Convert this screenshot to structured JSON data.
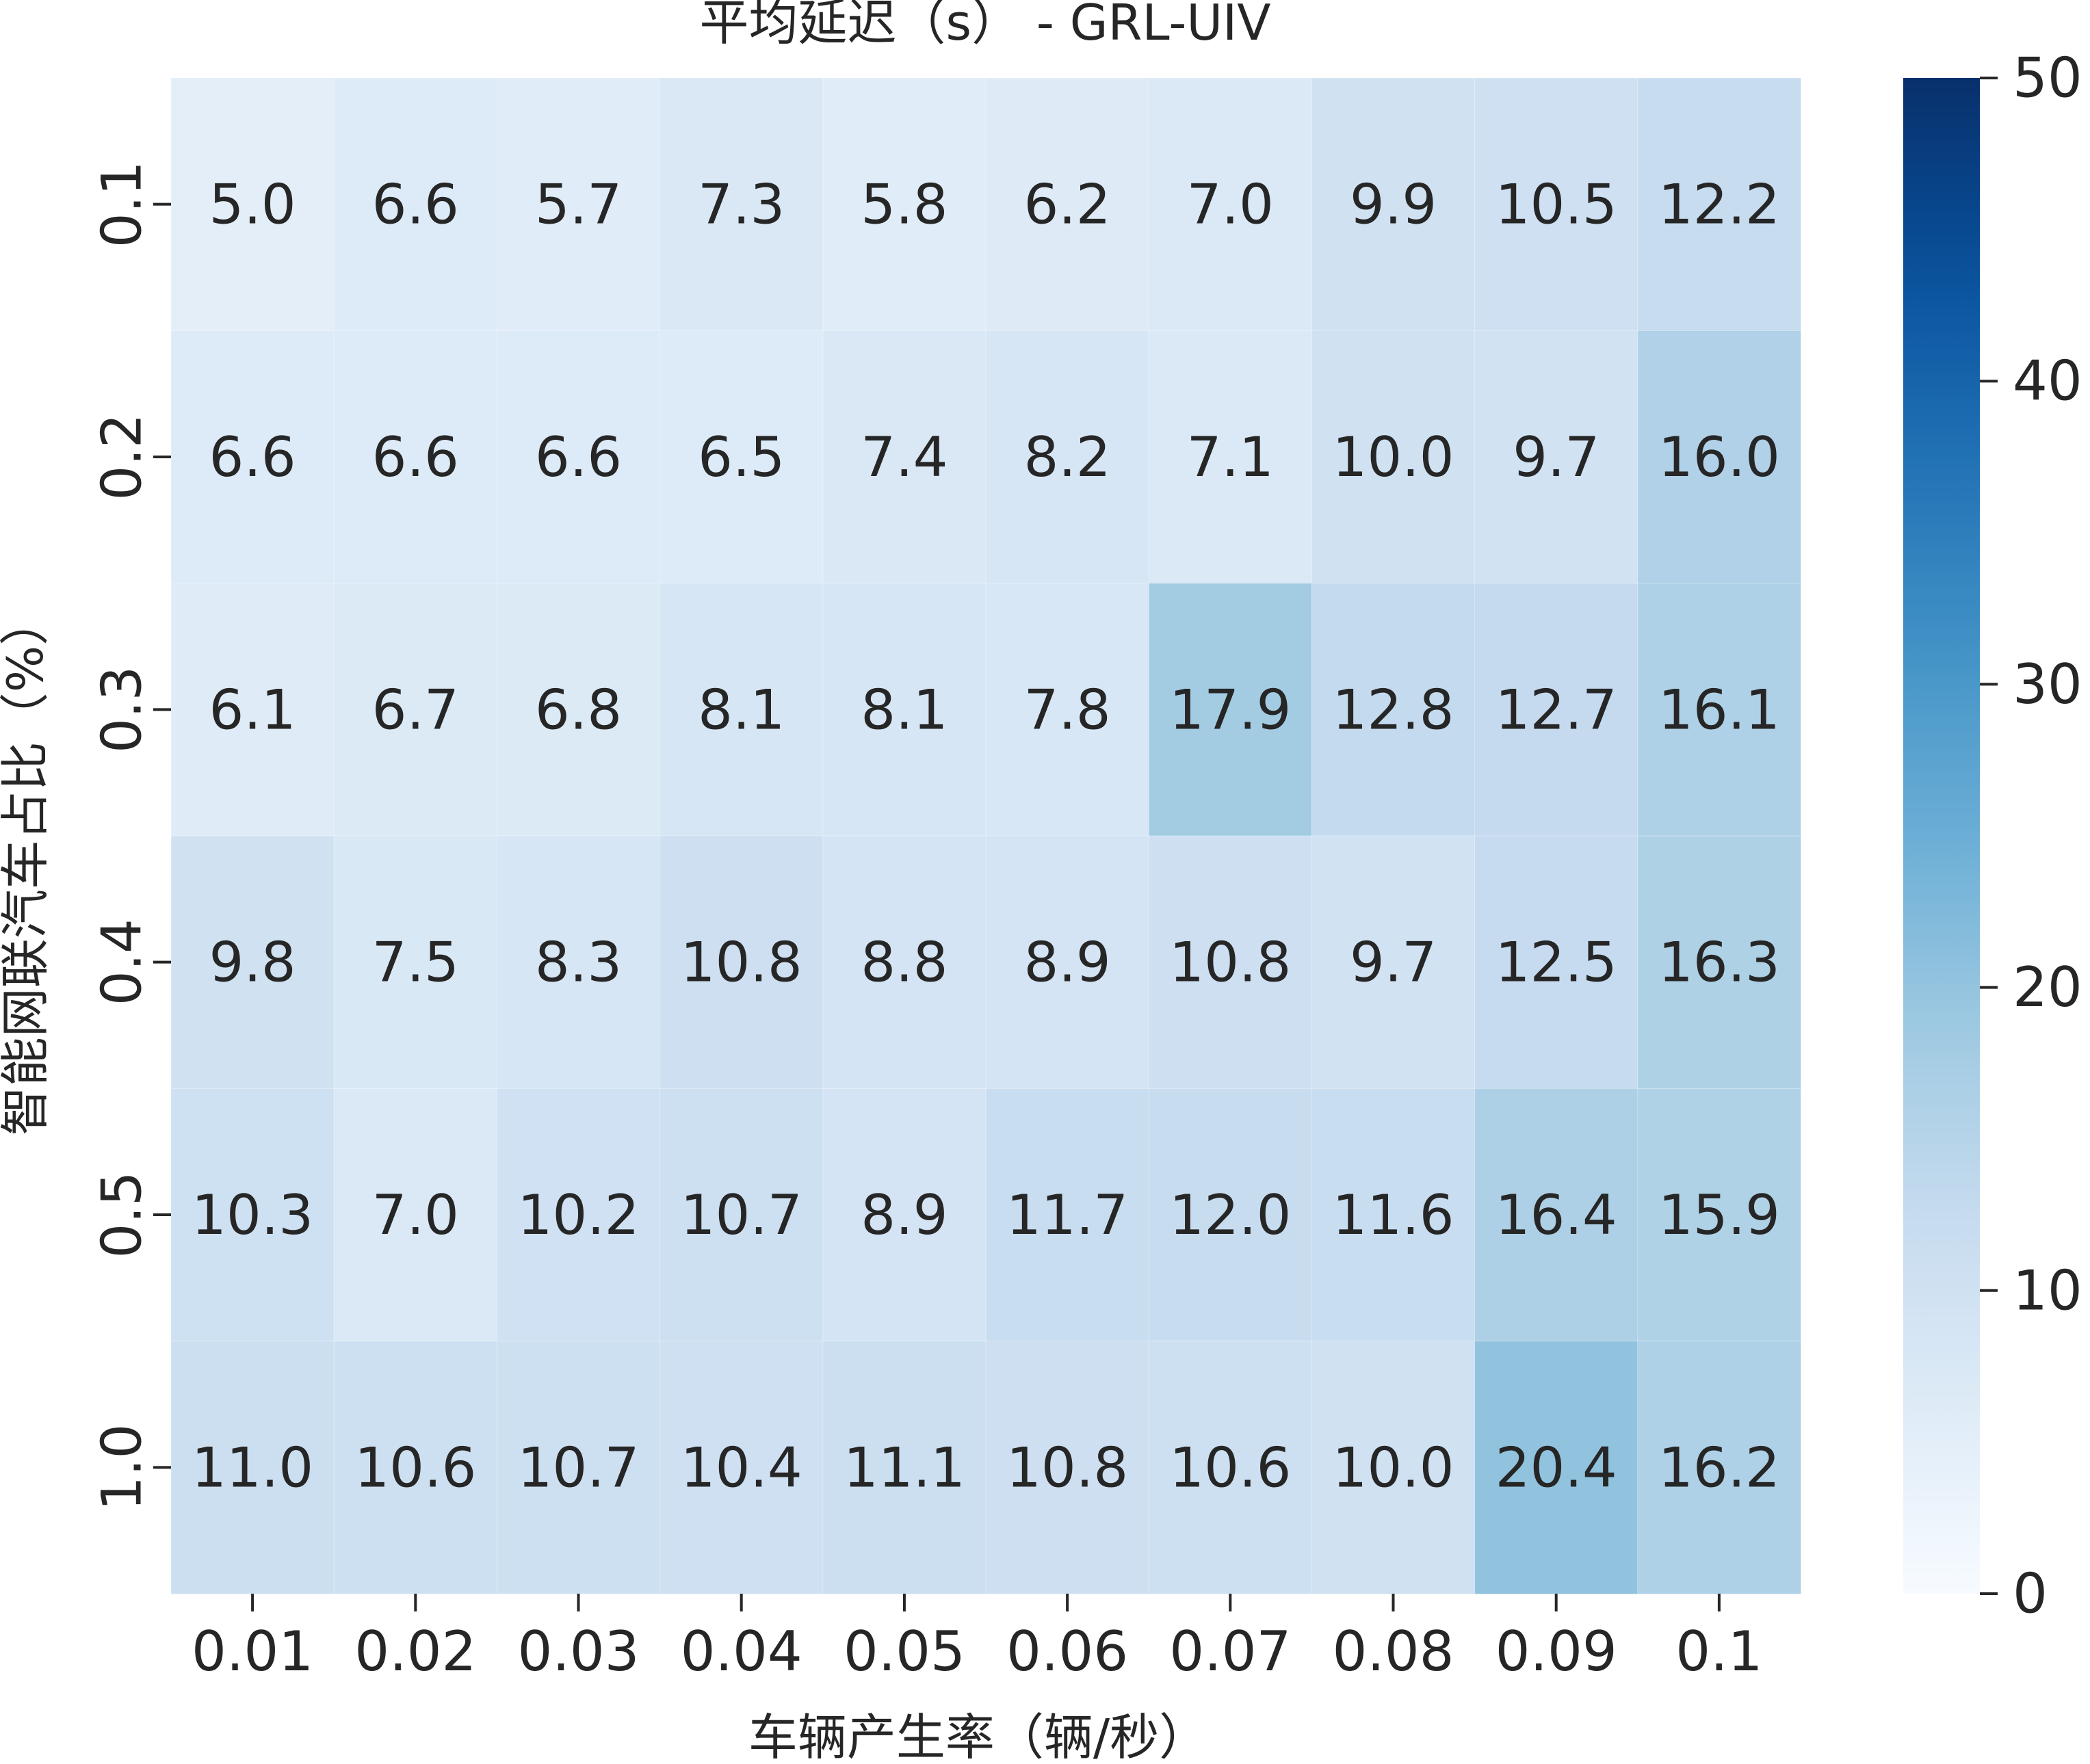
{
  "chart_data": {
    "type": "heatmap",
    "title": "平均延迟（s） - GRL-UIV",
    "xlabel": "车辆产生率（辆/秒）",
    "ylabel": "智能网联汽车占比（%）",
    "x_categories": [
      "0.01",
      "0.02",
      "0.03",
      "0.04",
      "0.05",
      "0.06",
      "0.07",
      "0.08",
      "0.09",
      "0.1"
    ],
    "y_categories": [
      "0.1",
      "0.2",
      "0.3",
      "0.4",
      "0.5",
      "1.0"
    ],
    "values": [
      [
        5.0,
        6.6,
        5.7,
        7.3,
        5.8,
        6.2,
        7.0,
        9.9,
        10.5,
        12.2
      ],
      [
        6.6,
        6.6,
        6.6,
        6.5,
        7.4,
        8.2,
        7.1,
        10.0,
        9.7,
        16.0
      ],
      [
        6.1,
        6.7,
        6.8,
        8.1,
        8.1,
        7.8,
        17.9,
        12.8,
        12.7,
        16.1
      ],
      [
        9.8,
        7.5,
        8.3,
        10.8,
        8.8,
        8.9,
        10.8,
        9.7,
        12.5,
        16.3
      ],
      [
        10.3,
        7.0,
        10.2,
        10.7,
        8.9,
        11.7,
        12.0,
        11.6,
        16.4,
        15.9
      ],
      [
        11.0,
        10.6,
        10.7,
        10.4,
        11.1,
        10.8,
        10.6,
        10.0,
        20.4,
        16.2
      ]
    ],
    "value_format": "0.0",
    "colormap": "Blues",
    "colorbar": {
      "min": 0,
      "max": 50,
      "ticks": [
        0,
        10,
        20,
        30,
        40,
        50
      ],
      "tick_labels": [
        "0",
        "10",
        "20",
        "30",
        "40",
        "50"
      ]
    }
  }
}
